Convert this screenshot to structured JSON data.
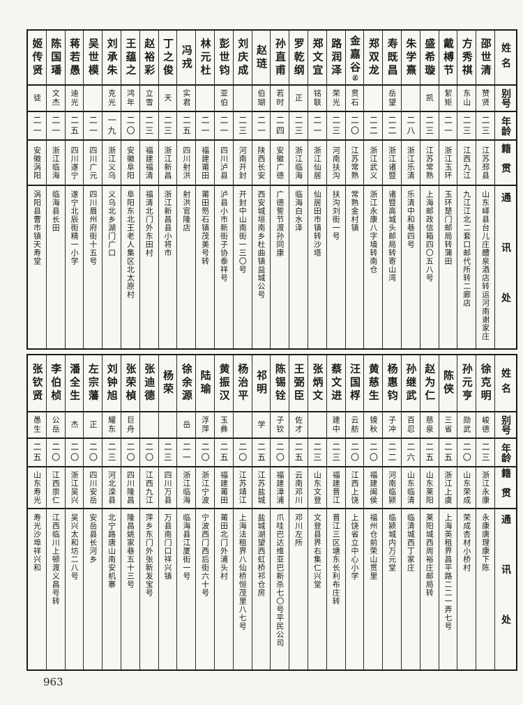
{
  "page_number": "963",
  "labels": {
    "name": "姓名",
    "alias": "别号",
    "age": "年龄",
    "native": "籍贯",
    "address": "通讯处"
  },
  "tables": [
    {
      "people": [
        {
          "name": "邵世清",
          "alias": "赞贤",
          "age": "二三",
          "native": "江苏邳县",
          "address": "山东峄县台儿庄醴泉酒店转运河南谢家庄"
        },
        {
          "name": "方秀祺",
          "alias": "东山",
          "age": "二三",
          "native": "江西九江",
          "address": "九江江北二套口邮代所转二廊店"
        },
        {
          "name": "戴榑节",
          "alias": "絜矩",
          "age": "二一",
          "native": "浙江玉环",
          "address": "玉环楚门邮局转蒲田"
        },
        {
          "name": "盛希璇",
          "alias": "凯",
          "age": "二三",
          "native": "江苏常熟",
          "address": "上海邮政信箱四〇五八号"
        },
        {
          "name": "朱学熹",
          "alias": "",
          "age": "二八",
          "native": "浙江乐清",
          "address": "乐清中和巷四号"
        },
        {
          "name": "寿既昌",
          "alias": "岳望",
          "age": "二二",
          "native": "浙江诸暨",
          "address": "诸暨高城头邮局转寄山湾"
        },
        {
          "name": "郑双龙",
          "alias": "",
          "age": "二二",
          "native": "浙江武义",
          "address": "浙江永康八字墙转南仓"
        },
        {
          "name": "金嘉谷",
          "note": "㊣",
          "alias": "贯石",
          "age": "二〇",
          "native": "江苏常熟",
          "address": "常熟金村镇"
        },
        {
          "name": "路润泽",
          "alias": "荣光",
          "age": "二三",
          "native": "河南扶沟",
          "address": "扶沟刘街一号"
        },
        {
          "name": "郑文宜",
          "alias": "铭联",
          "age": "二一",
          "native": "浙江仙居",
          "address": "仙居田市镇转沙塔"
        },
        {
          "name": "罗乾纲",
          "alias": "正",
          "age": "二三",
          "native": "浙江临海",
          "address": "临海白水泽"
        },
        {
          "name": "孙直甫",
          "alias": "若时",
          "age": "二四",
          "native": "安徽广德",
          "address": "广德誓节渡孙同康"
        },
        {
          "name": "赵琏",
          "alias": "伯瑚",
          "age": "二一",
          "native": "陕西长安",
          "address": "西安城垣南乡杜曲镇益城公号"
        },
        {
          "name": "刘庆成",
          "alias": "",
          "age": "二三",
          "native": "河南开封",
          "address": "开封中山南街一三〇号"
        },
        {
          "name": "彭世钧",
          "alias": "亚伯",
          "age": "二一",
          "native": "四川泸县",
          "address": "泸县小市新街子协泰祥号"
        },
        {
          "name": "林元杜",
          "alias": "",
          "age": "二一",
          "native": "福建莆田",
          "address": "莆田笏石镇茂美号转"
        },
        {
          "name": "冯戎",
          "alias": "实君",
          "age": "二五",
          "native": "四川射洪",
          "address": "射洪官隆店"
        },
        {
          "name": "丁之俊",
          "alias": "天",
          "age": "二三",
          "native": "浙江新昌",
          "address": "浙江新昌县小将市"
        },
        {
          "name": "赵裕彩",
          "alias": "立雪",
          "age": "二三",
          "native": "福建福清",
          "address": "福清北门外东田村"
        },
        {
          "name": "王蕴之",
          "alias": "鸿年",
          "age": "二〇",
          "native": "安徽阜阳",
          "address": "阜阳东北王老人集区北太原村"
        },
        {
          "name": "刘承朱",
          "alias": "克光",
          "age": "一九",
          "native": "浙江义乌",
          "address": "义乌北乡湖门广口"
        },
        {
          "name": "吴世模",
          "alias": "",
          "age": "二一",
          "native": "四川广元",
          "address": "四川眉州府街十五号"
        },
        {
          "name": "蒋若愚",
          "alias": "迪光",
          "age": "二五",
          "native": "四川遂宁",
          "address": "遂宁北辰街精一小学"
        },
        {
          "name": "陈国璠",
          "alias": "文杰",
          "age": "二一",
          "native": "浙江临海",
          "address": "临海县长田"
        },
        {
          "name": "姬传贤",
          "alias": "徒",
          "age": "二一",
          "native": "安徽涡阳",
          "address": "涡阳县曹市镇天寿堂"
        }
      ]
    },
    {
      "people": [
        {
          "name": "徐克明",
          "alias": "峻德",
          "age": "二三",
          "native": "浙江永康",
          "address": "永康唐理康下陈"
        },
        {
          "name": "孙元亨",
          "alias": "勋武",
          "age": "二〇",
          "native": "山东荣成",
          "address": "荣成杏材小桥村"
        },
        {
          "name": "陈侠",
          "alias": "三省",
          "age": "二五",
          "native": "浙江上虞",
          "address": "上海英租界昌平路二二一弄七号"
        },
        {
          "name": "赵为仁",
          "alias": "慈泉",
          "age": "二五",
          "native": "山东莱阳",
          "address": "莱阳城西周裕庄邮局转"
        },
        {
          "name": "孙继武",
          "alias": "百忍",
          "age": "二六",
          "native": "山东临清",
          "address": "临清城西丁家庄"
        },
        {
          "name": "杨惠钧",
          "alias": "子冲",
          "age": "二二",
          "native": "河南临颍",
          "address": "临颍城内万元堂"
        },
        {
          "name": "黄慈生",
          "alias": "镜秋",
          "age": "二〇",
          "native": "福建闽侯",
          "address": "福州仓前荣山贯里"
        },
        {
          "name": "汪国桴",
          "alias": "云舫",
          "age": "二〇",
          "native": "江西上饶",
          "address": "上饶省立中心小学"
        },
        {
          "name": "蔡文进",
          "alias": "建中",
          "age": "二三",
          "native": "福建晋江",
          "address": "晋江三区塘东长利布庄转"
        },
        {
          "name": "张炳文",
          "alias": "",
          "age": "二三",
          "native": "山东文登",
          "address": "文登县界右集仁兴堂"
        },
        {
          "name": "王弼臣",
          "alias": "佐才",
          "age": "二五",
          "native": "云南邓川",
          "address": "邓川左所"
        },
        {
          "name": "陈锡铨",
          "alias": "子钦",
          "age": "二〇",
          "native": "福建漳浦",
          "address": "爪哇巴达维亚巴新杀七〇号平民公司"
        },
        {
          "name": "祁明",
          "alias": "学",
          "age": "二五",
          "native": "江苏盐城",
          "address": "盐城湖望西虹桥祁仓房"
        },
        {
          "name": "杨治平",
          "alias": "",
          "age": "二〇",
          "native": "江苏靖江",
          "address": "上海法租界八仙桥恒茂里八七号"
        },
        {
          "name": "黄振汉",
          "alias": "玉彝",
          "age": "二五",
          "native": "福建莆田",
          "address": "莆田北门外浦头村"
        },
        {
          "name": "陆瑜",
          "alias": "浮萍",
          "age": "二〇",
          "native": "浙江宁波",
          "address": "宁波西门西后街六十号"
        },
        {
          "name": "徐余源",
          "alias": "岳",
          "age": "二一",
          "native": "浙江临海",
          "address": "临海县江厦街一号"
        },
        {
          "name": "杨荣",
          "alias": "",
          "age": "二三",
          "native": "四川万县",
          "address": "万县南门口祥兴镇"
        },
        {
          "name": "张迪德",
          "alias": "",
          "age": "二〇",
          "native": "江西九江",
          "address": "萍乡东门外张新发宝号"
        },
        {
          "name": "张荣楨",
          "alias": "巨舟",
          "age": "二〇",
          "native": "四川隆昌",
          "address": "隆昌姚家巷五十三号"
        },
        {
          "name": "刘钟旭",
          "alias": "耀东",
          "age": "二三",
          "native": "河北滦县",
          "address": "北宁路唐山南安机寨"
        },
        {
          "name": "左宗藩",
          "alias": "正",
          "age": "二〇",
          "native": "四川安岳",
          "address": "安岳县长河乡"
        },
        {
          "name": "潘全生",
          "alias": "杰",
          "age": "二〇",
          "native": "浙江吴兴",
          "address": "吴兴太和坊二八号"
        },
        {
          "name": "李伯桢",
          "alias": "公岳",
          "age": "二〇",
          "native": "江西崇仁",
          "address": "江西临川上顿渡义昌号转"
        },
        {
          "name": "张钦贤",
          "alias": "愚生",
          "age": "二五",
          "native": "山东寿光",
          "address": "寿光沙埠祥兴和"
        }
      ]
    }
  ]
}
